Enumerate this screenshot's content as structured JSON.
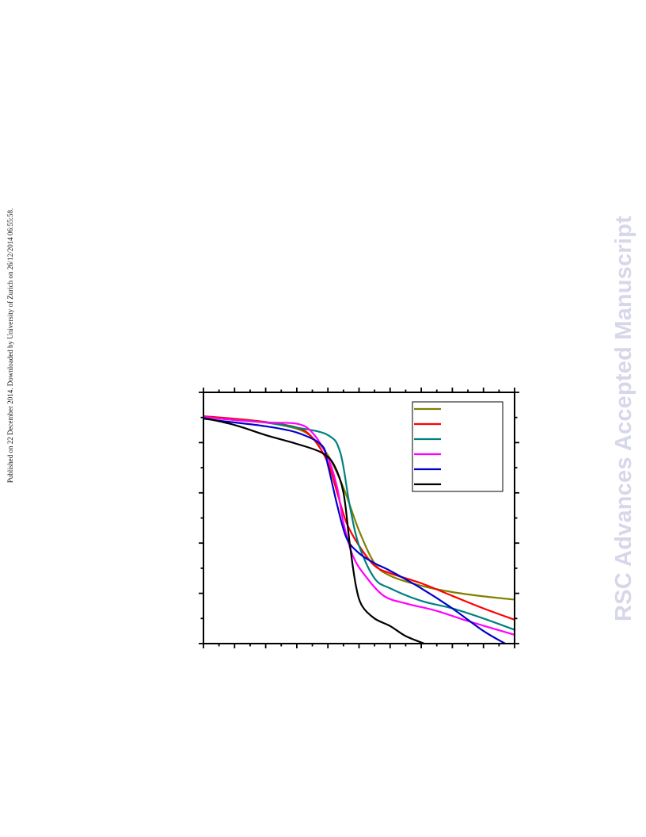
{
  "page": {
    "side_note": "Published on 22 December 2014. Downloaded by University of Zurich on 26/12/2014 06:55:58.",
    "watermark": "RSC Advances Accepted Manuscript",
    "watermark_color": "#d7d7ea"
  },
  "chart_data": {
    "type": "line",
    "title": "",
    "xlabel": "",
    "ylabel": "",
    "xlim": [
      0,
      100
    ],
    "ylim": [
      0,
      100
    ],
    "x_major_ticks": [
      0,
      10,
      20,
      30,
      40,
      50,
      60,
      70,
      80,
      90,
      100
    ],
    "y_major_ticks": [
      0,
      20,
      40,
      60,
      80,
      100
    ],
    "grid": false,
    "legend": "top-right",
    "series": [
      {
        "color": "#808000",
        "points": [
          [
            0,
            90
          ],
          [
            10,
            89.2
          ],
          [
            20,
            88
          ],
          [
            30,
            85.5
          ],
          [
            35,
            82
          ],
          [
            40,
            75
          ],
          [
            45,
            62
          ],
          [
            50,
            45
          ],
          [
            55,
            32
          ],
          [
            60,
            27
          ],
          [
            70,
            23
          ],
          [
            80,
            20.5
          ],
          [
            90,
            18.8
          ],
          [
            100,
            17.5
          ]
        ]
      },
      {
        "color": "#ff0000",
        "points": [
          [
            0,
            90.5
          ],
          [
            10,
            89.5
          ],
          [
            20,
            88.2
          ],
          [
            30,
            86
          ],
          [
            35,
            82
          ],
          [
            40,
            72
          ],
          [
            43,
            60
          ],
          [
            46,
            48
          ],
          [
            50,
            39
          ],
          [
            55,
            31
          ],
          [
            60,
            28
          ],
          [
            70,
            24
          ],
          [
            80,
            19
          ],
          [
            90,
            14
          ],
          [
            100,
            9.5
          ]
        ]
      },
      {
        "color": "#008080",
        "points": [
          [
            0,
            90.2
          ],
          [
            10,
            89
          ],
          [
            20,
            88
          ],
          [
            30,
            86
          ],
          [
            40,
            83
          ],
          [
            44,
            76
          ],
          [
            47,
            55
          ],
          [
            50,
            39
          ],
          [
            55,
            26
          ],
          [
            60,
            22
          ],
          [
            70,
            17
          ],
          [
            80,
            14
          ],
          [
            90,
            10
          ],
          [
            100,
            5.5
          ]
        ]
      },
      {
        "color": "#ff00ff",
        "points": [
          [
            0,
            90.2
          ],
          [
            10,
            89
          ],
          [
            20,
            88
          ],
          [
            30,
            87.5
          ],
          [
            35,
            84
          ],
          [
            40,
            74
          ],
          [
            43,
            62
          ],
          [
            45,
            48
          ],
          [
            48,
            35
          ],
          [
            52,
            27
          ],
          [
            58,
            19
          ],
          [
            65,
            16
          ],
          [
            75,
            13
          ],
          [
            85,
            9
          ],
          [
            100,
            3.5
          ]
        ]
      },
      {
        "color": "#0000cc",
        "points": [
          [
            0,
            89.5
          ],
          [
            10,
            88
          ],
          [
            20,
            86.5
          ],
          [
            30,
            84
          ],
          [
            38,
            79
          ],
          [
            40,
            71
          ],
          [
            43,
            55
          ],
          [
            46,
            42
          ],
          [
            50,
            36
          ],
          [
            55,
            32
          ],
          [
            60,
            29
          ],
          [
            70,
            22
          ],
          [
            80,
            14
          ],
          [
            90,
            5
          ],
          [
            97,
            0
          ]
        ]
      },
      {
        "color": "#000000",
        "points": [
          [
            0,
            89.8
          ],
          [
            10,
            87
          ],
          [
            20,
            83
          ],
          [
            30,
            79.5
          ],
          [
            38,
            76
          ],
          [
            42,
            71
          ],
          [
            45,
            60
          ],
          [
            47,
            40
          ],
          [
            49,
            23
          ],
          [
            51,
            15
          ],
          [
            55,
            10
          ],
          [
            60,
            7
          ],
          [
            65,
            3
          ],
          [
            71,
            0
          ]
        ]
      }
    ]
  }
}
